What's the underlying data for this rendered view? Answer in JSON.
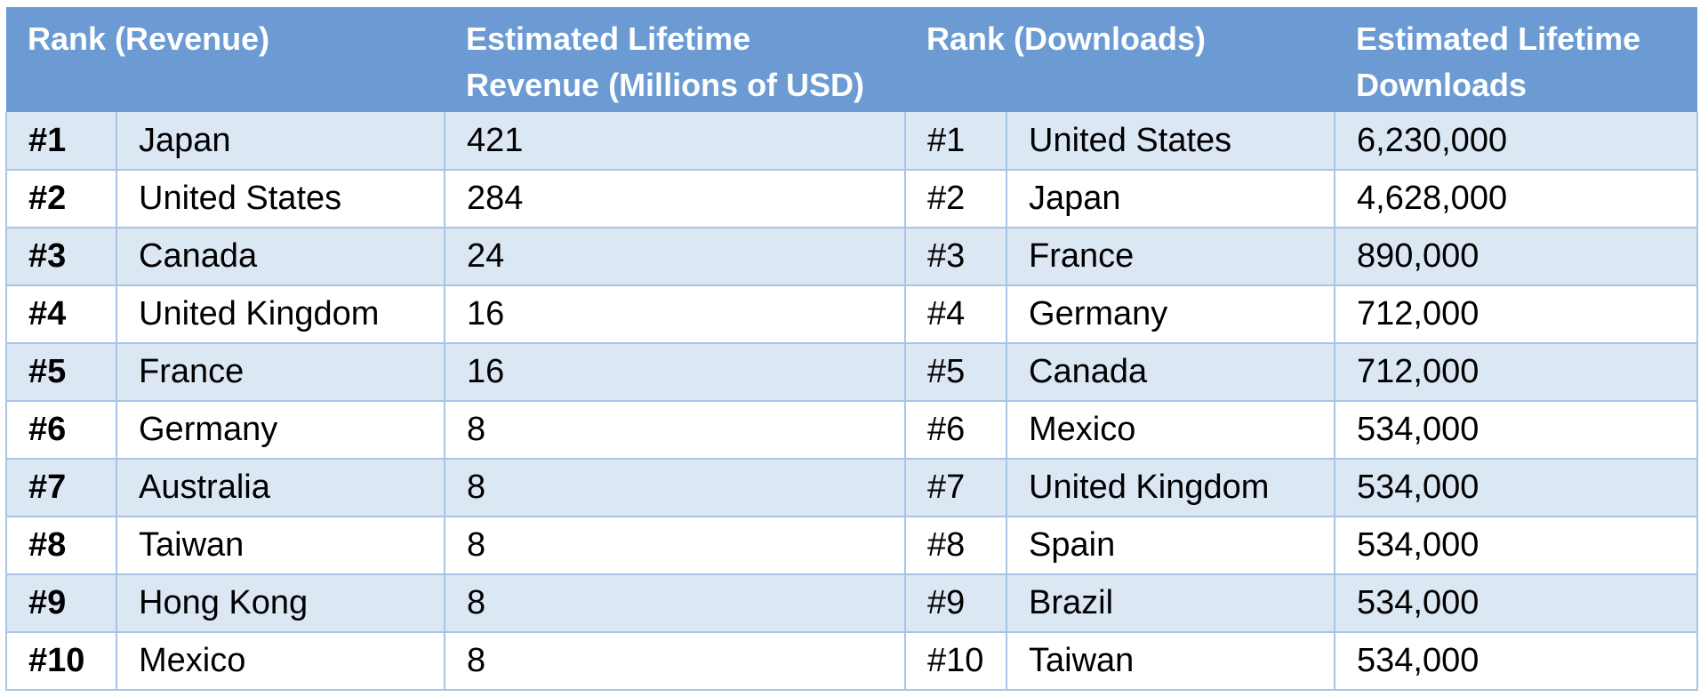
{
  "header": {
    "rank_revenue": "Rank (Revenue)",
    "revenue_line1": "Estimated Lifetime",
    "revenue_line2": "Revenue (Millions of USD)",
    "rank_downloads": "Rank (Downloads)",
    "downloads_line1": "Estimated Lifetime",
    "downloads_line2": "Downloads"
  },
  "rows": [
    {
      "rev_rank": "#1",
      "rev_country": "Japan",
      "revenue": "421",
      "dl_rank": "#1",
      "dl_country": "United States",
      "downloads": "6,230,000"
    },
    {
      "rev_rank": "#2",
      "rev_country": "United States",
      "revenue": "284",
      "dl_rank": "#2",
      "dl_country": "Japan",
      "downloads": "4,628,000"
    },
    {
      "rev_rank": "#3",
      "rev_country": "Canada",
      "revenue": "24",
      "dl_rank": "#3",
      "dl_country": "France",
      "downloads": "890,000"
    },
    {
      "rev_rank": "#4",
      "rev_country": "United Kingdom",
      "revenue": "16",
      "dl_rank": "#4",
      "dl_country": "Germany",
      "downloads": "712,000"
    },
    {
      "rev_rank": "#5",
      "rev_country": "France",
      "revenue": "16",
      "dl_rank": "#5",
      "dl_country": "Canada",
      "downloads": "712,000"
    },
    {
      "rev_rank": "#6",
      "rev_country": "Germany",
      "revenue": "8",
      "dl_rank": "#6",
      "dl_country": "Mexico",
      "downloads": "534,000"
    },
    {
      "rev_rank": "#7",
      "rev_country": "Australia",
      "revenue": "8",
      "dl_rank": "#7",
      "dl_country": "United Kingdom",
      "downloads": "534,000"
    },
    {
      "rev_rank": "#8",
      "rev_country": "Taiwan",
      "revenue": "8",
      "dl_rank": "#8",
      "dl_country": "Spain",
      "downloads": "534,000"
    },
    {
      "rev_rank": "#9",
      "rev_country": "Hong Kong",
      "revenue": "8",
      "dl_rank": "#9",
      "dl_country": "Brazil",
      "downloads": "534,000"
    },
    {
      "rev_rank": "#10",
      "rev_country": "Mexico",
      "revenue": "8",
      "dl_rank": "#10",
      "dl_country": "Taiwan",
      "downloads": "534,000"
    }
  ],
  "colors": {
    "header_bg": "#6b9bd2",
    "row_alt_bg": "#dce7f4",
    "grid_line": "#a9c5e6"
  }
}
